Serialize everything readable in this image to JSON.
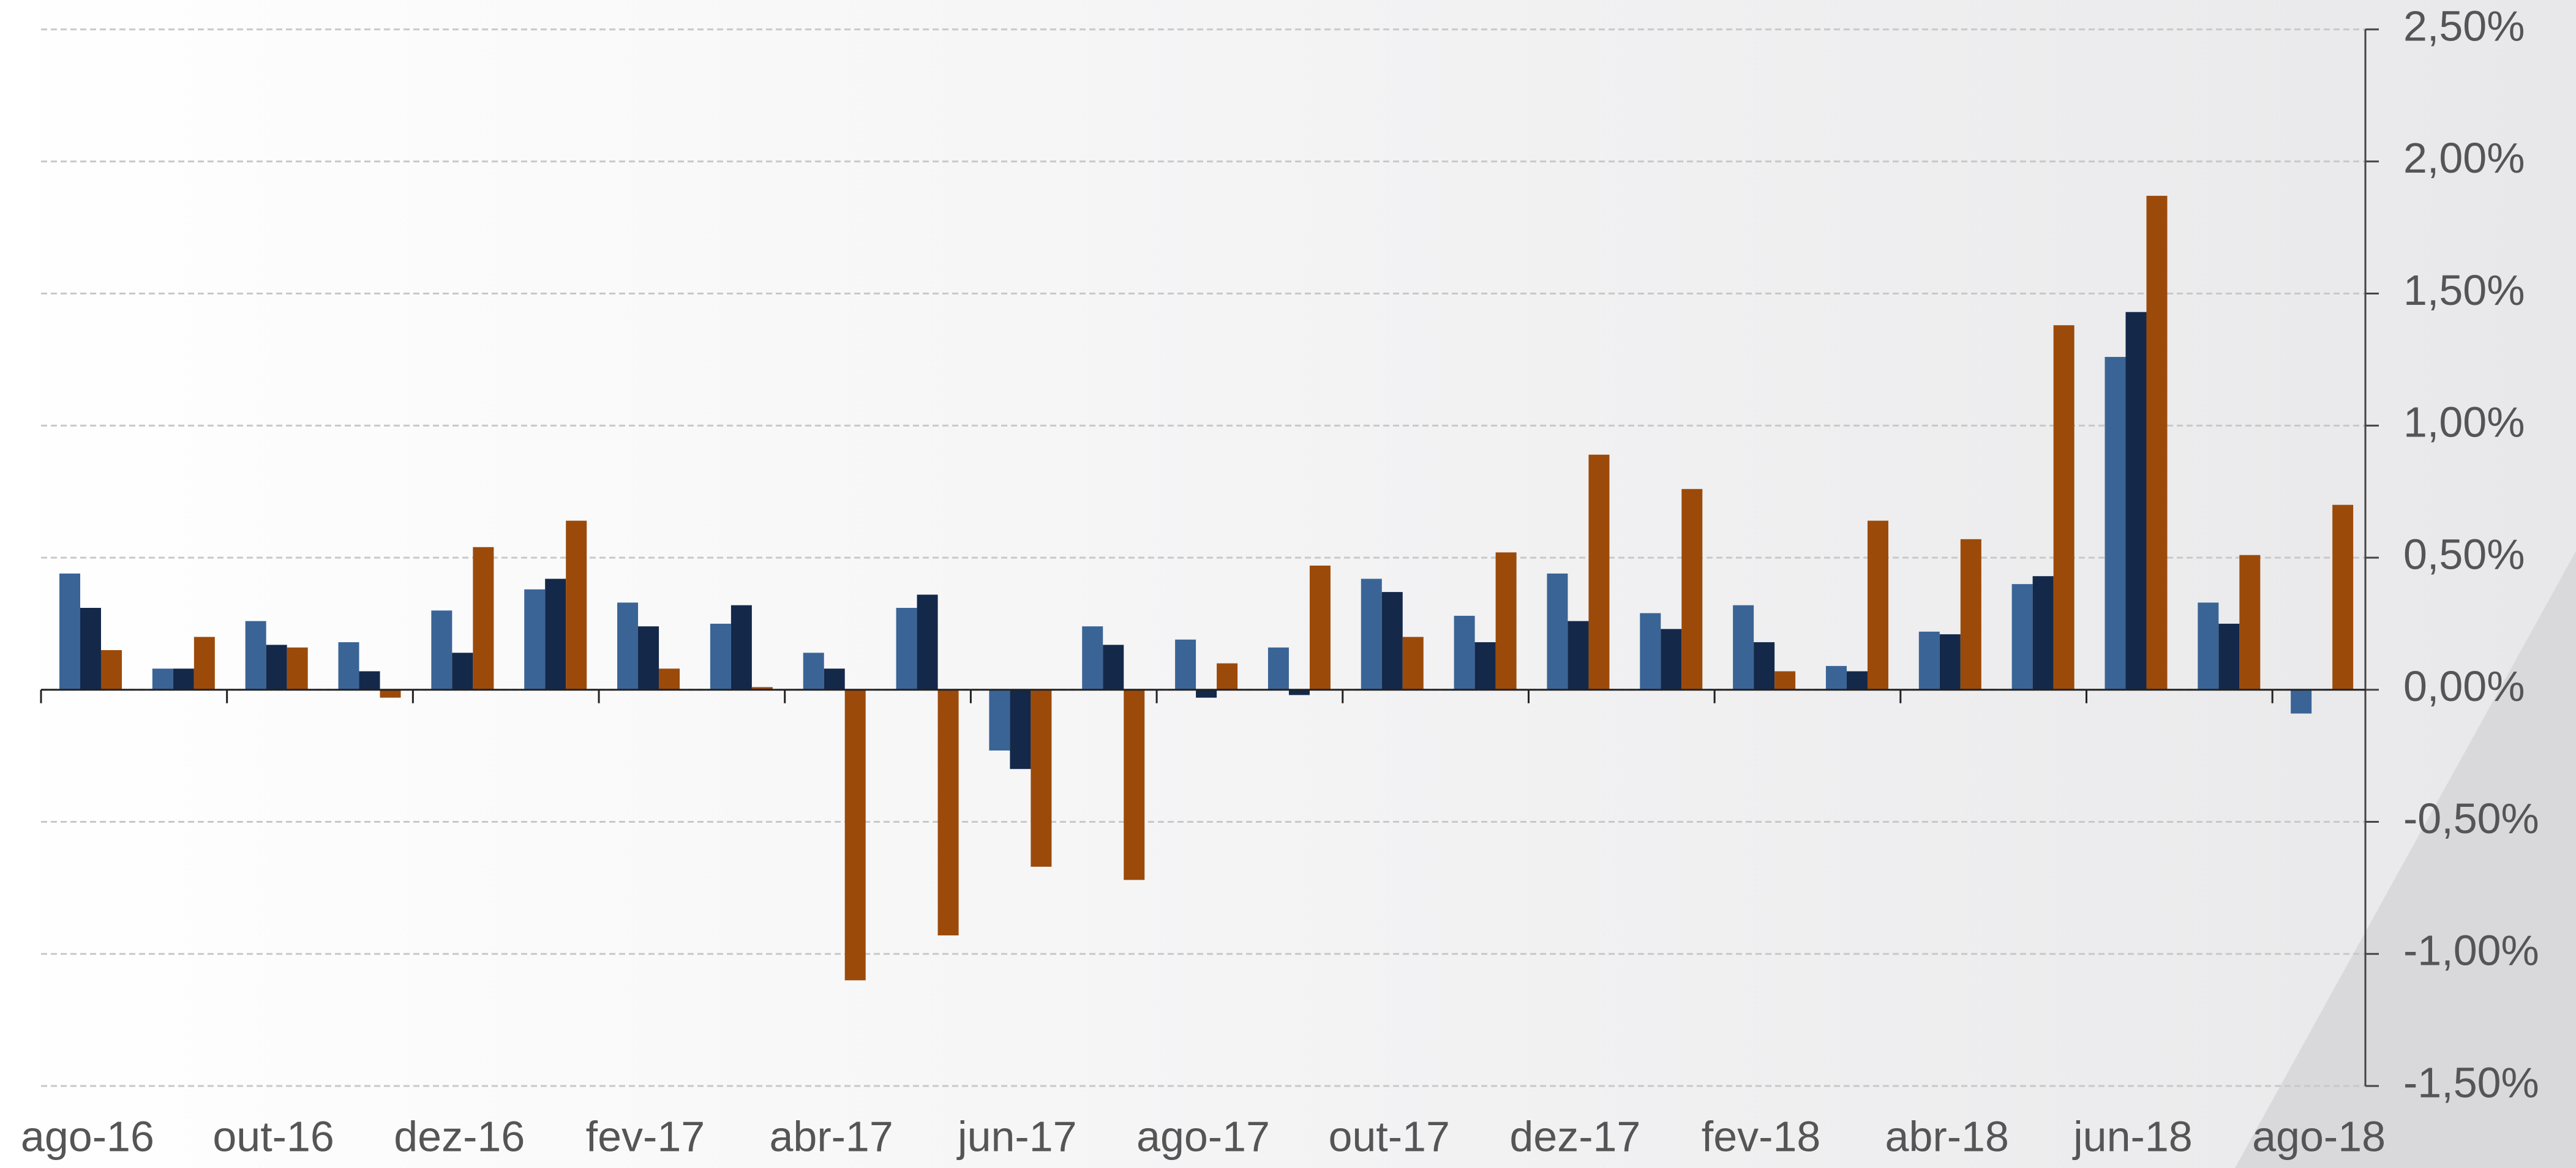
{
  "chart_data": {
    "type": "bar",
    "categories": [
      "ago-16",
      null,
      "out-16",
      null,
      "dez-16",
      null,
      "fev-17",
      null,
      "abr-17",
      null,
      "jun-17",
      null,
      "ago-17",
      null,
      "out-17",
      null,
      "dez-17",
      null,
      "fev-18",
      null,
      "abr-18",
      null,
      "jun-18",
      null,
      "ago-18"
    ],
    "series": [
      {
        "color": "#3a6496",
        "values": [
          0.44,
          0.08,
          0.26,
          0.18,
          0.3,
          0.38,
          0.33,
          0.25,
          0.14,
          0.31,
          -0.23,
          0.24,
          0.19,
          0.16,
          0.42,
          0.28,
          0.44,
          0.29,
          0.32,
          0.09,
          0.22,
          0.4,
          1.26,
          0.33,
          -0.09
        ]
      },
      {
        "color": "#14284a",
        "values": [
          0.31,
          0.08,
          0.17,
          0.07,
          0.14,
          0.42,
          0.24,
          0.32,
          0.08,
          0.36,
          -0.3,
          0.17,
          -0.03,
          -0.02,
          0.37,
          0.18,
          0.26,
          0.23,
          0.18,
          0.07,
          0.21,
          0.43,
          1.43,
          0.25,
          null
        ]
      },
      {
        "color": "#9c4a0a",
        "values": [
          0.15,
          0.2,
          0.16,
          -0.03,
          0.54,
          0.64,
          0.08,
          0.01,
          -1.1,
          -0.93,
          -0.67,
          -0.72,
          0.1,
          0.47,
          0.2,
          0.52,
          0.89,
          0.76,
          0.07,
          0.64,
          0.57,
          1.38,
          1.87,
          0.51,
          0.7
        ]
      }
    ],
    "ylim": [
      -1.5,
      2.5
    ],
    "yticks": [
      {
        "value": -1.5,
        "label": "-1,50%"
      },
      {
        "value": -1.0,
        "label": "-1,00%"
      },
      {
        "value": -0.5,
        "label": "-0,50%"
      },
      {
        "value": 0,
        "label": "0,00%"
      },
      {
        "value": 0.5,
        "label": "0,50%"
      },
      {
        "value": 1.0,
        "label": "1,00%"
      },
      {
        "value": 1.5,
        "label": "1,50%"
      },
      {
        "value": 2.0,
        "label": "2,00%"
      },
      {
        "value": 2.5,
        "label": "2,50%"
      }
    ],
    "grid": true
  }
}
